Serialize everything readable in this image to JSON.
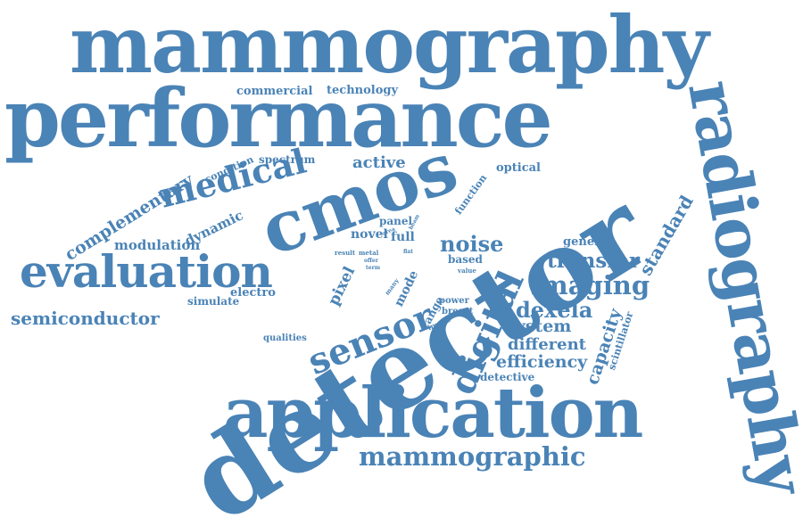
{
  "color": "#4a83b6",
  "words": [
    {
      "text": "mammography"
    },
    {
      "text": "performance"
    },
    {
      "text": "detector"
    },
    {
      "text": "application"
    },
    {
      "text": "radiography"
    },
    {
      "text": "cmos"
    },
    {
      "text": "evaluation"
    },
    {
      "text": "medical"
    },
    {
      "text": "sensor"
    },
    {
      "text": "digital"
    },
    {
      "text": "mammographic"
    },
    {
      "text": "imaging"
    },
    {
      "text": "semiconductor"
    },
    {
      "text": "complementary"
    },
    {
      "text": "noise"
    },
    {
      "text": "transfer"
    },
    {
      "text": "dexela"
    },
    {
      "text": "active"
    },
    {
      "text": "standard"
    },
    {
      "text": "capacity"
    },
    {
      "text": "system"
    },
    {
      "text": "efficiency"
    },
    {
      "text": "different"
    },
    {
      "text": "modulation"
    },
    {
      "text": "dynamic"
    },
    {
      "text": "pixel"
    },
    {
      "text": "commercial"
    },
    {
      "text": "technology"
    },
    {
      "text": "spectrum"
    },
    {
      "text": "condition"
    },
    {
      "text": "optical"
    },
    {
      "text": "general"
    },
    {
      "text": "function"
    },
    {
      "text": "electro"
    },
    {
      "text": "simulate"
    },
    {
      "text": "novel"
    },
    {
      "text": "panel"
    },
    {
      "text": "full"
    },
    {
      "text": "mode"
    },
    {
      "text": "range"
    },
    {
      "text": "based"
    },
    {
      "text": "scintillator"
    },
    {
      "text": "detective"
    },
    {
      "text": "qualities"
    },
    {
      "text": "power"
    },
    {
      "text": "breast"
    },
    {
      "text": "image"
    },
    {
      "text": "beam"
    },
    {
      "text": "area"
    },
    {
      "text": "flat"
    },
    {
      "text": "result"
    },
    {
      "text": "metal"
    },
    {
      "text": "offer"
    },
    {
      "text": "term"
    },
    {
      "text": "many"
    },
    {
      "text": "value"
    }
  ]
}
